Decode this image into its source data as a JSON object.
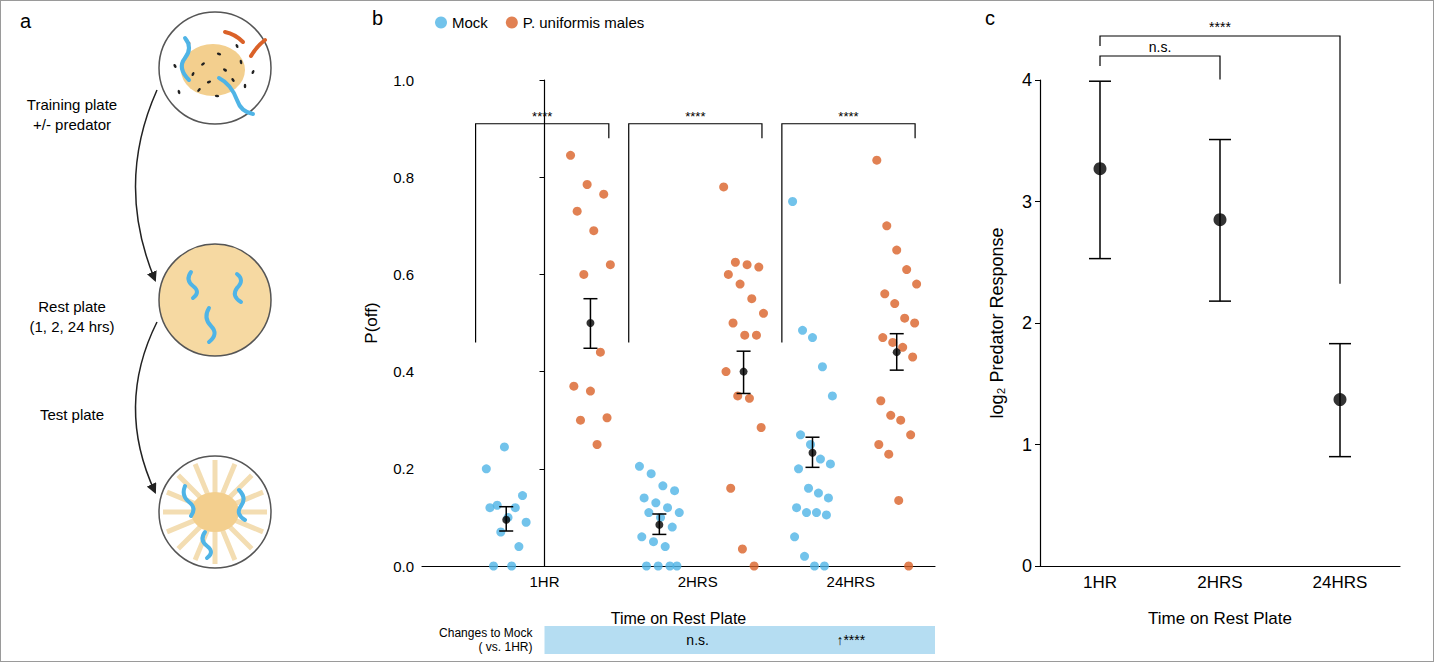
{
  "diagram": {
    "letter": "a",
    "steps": [
      {
        "lines": [
          "Training plate",
          "+/- predator"
        ]
      },
      {
        "lines": [
          "Rest plate",
          "(1, 2, 24 hrs)"
        ]
      },
      {
        "lines": [
          "Test plate"
        ]
      }
    ]
  },
  "chart_data": [
    {
      "letter": "b",
      "type": "scatter",
      "categories": [
        "1HR",
        "2HRS",
        "24HRS"
      ],
      "x_label": "Time on Rest Plate",
      "y_label": "P(off)",
      "ylim": [
        0,
        1
      ],
      "yticks": [
        {
          "value": 0,
          "label": "0.0"
        },
        0.2,
        0.4,
        0.6,
        0.8,
        {
          "value": 1,
          "label": "1.0"
        }
      ],
      "grid": false,
      "legend": "top-left",
      "series": [
        {
          "name": "Mock",
          "color": "#4FB4E6",
          "values": [
            [
              0.2,
              0.245,
              0.145,
              0.125,
              0.12,
              0.12,
              0.1,
              0.09,
              0.07,
              0.04,
              0.0,
              0.0
            ],
            [
              0.205,
              0.19,
              0.165,
              0.155,
              0.14,
              0.13,
              0.12,
              0.11,
              0.11,
              0.1,
              0.08,
              0.06,
              0.05,
              0.04,
              0.0,
              0.0,
              0.0,
              0.0
            ],
            [
              0.75,
              0.485,
              0.47,
              0.41,
              0.35,
              0.27,
              0.25,
              0.22,
              0.21,
              0.2,
              0.16,
              0.15,
              0.14,
              0.12,
              0.11,
              0.11,
              0.105,
              0.06,
              0.02,
              0.0,
              0.0
            ]
          ],
          "mean": [
            0.095,
            0.085,
            0.233
          ],
          "error_low": [
            0.072,
            0.065,
            0.203
          ],
          "error_high": [
            0.122,
            0.107,
            0.265
          ]
        },
        {
          "name": "P. uniformis males",
          "color": "#DA6128",
          "values": [
            [
              0.845,
              0.785,
              0.765,
              0.73,
              0.69,
              0.62,
              0.6,
              0.44,
              0.37,
              0.36,
              0.305,
              0.3,
              0.25
            ],
            [
              0.78,
              0.625,
              0.62,
              0.615,
              0.6,
              0.58,
              0.55,
              0.52,
              0.5,
              0.475,
              0.475,
              0.4,
              0.35,
              0.345,
              0.285,
              0.16,
              0.035,
              0.0
            ],
            [
              0.835,
              0.7,
              0.65,
              0.61,
              0.58,
              0.56,
              0.54,
              0.51,
              0.5,
              0.47,
              0.46,
              0.45,
              0.43,
              0.34,
              0.31,
              0.3,
              0.27,
              0.25,
              0.23,
              0.135,
              0.0
            ]
          ],
          "mean": [
            0.5,
            0.4,
            0.44
          ],
          "error_low": [
            0.448,
            0.355,
            0.403
          ],
          "error_high": [
            0.55,
            0.442,
            0.478
          ]
        }
      ],
      "comparisons": [
        {
          "category": "1HR",
          "label": "****"
        },
        {
          "category": "2HRS",
          "label": "****"
        },
        {
          "category": "24HRS",
          "label": "****"
        }
      ],
      "mock_change": {
        "label_lines": [
          "Changes to Mock",
          "( vs. 1HR)"
        ],
        "color": "#B5DDF2",
        "items": [
          {
            "category": "2HRS",
            "label": "n.s."
          },
          {
            "category": "24HRS",
            "label": "↑****"
          }
        ]
      }
    },
    {
      "letter": "c",
      "type": "scatter",
      "categories": [
        "1HR",
        "2HRS",
        "24HRS"
      ],
      "x_label": "Time on Rest Plate",
      "y_label": "log₂ Predator Response",
      "ylim": [
        0,
        4
      ],
      "yticks": [
        0,
        1,
        2,
        3,
        4
      ],
      "grid": false,
      "color": "#000000",
      "values": [
        3.27,
        2.85,
        1.37
      ],
      "error_low": [
        2.53,
        2.18,
        0.9
      ],
      "error_high": [
        3.99,
        3.51,
        1.83
      ],
      "comparisons": [
        {
          "categories": [
            "1HR",
            "2HRS"
          ],
          "label": "n.s."
        },
        {
          "categories": [
            "1HR",
            "24HRS"
          ],
          "label": "****"
        }
      ]
    }
  ]
}
